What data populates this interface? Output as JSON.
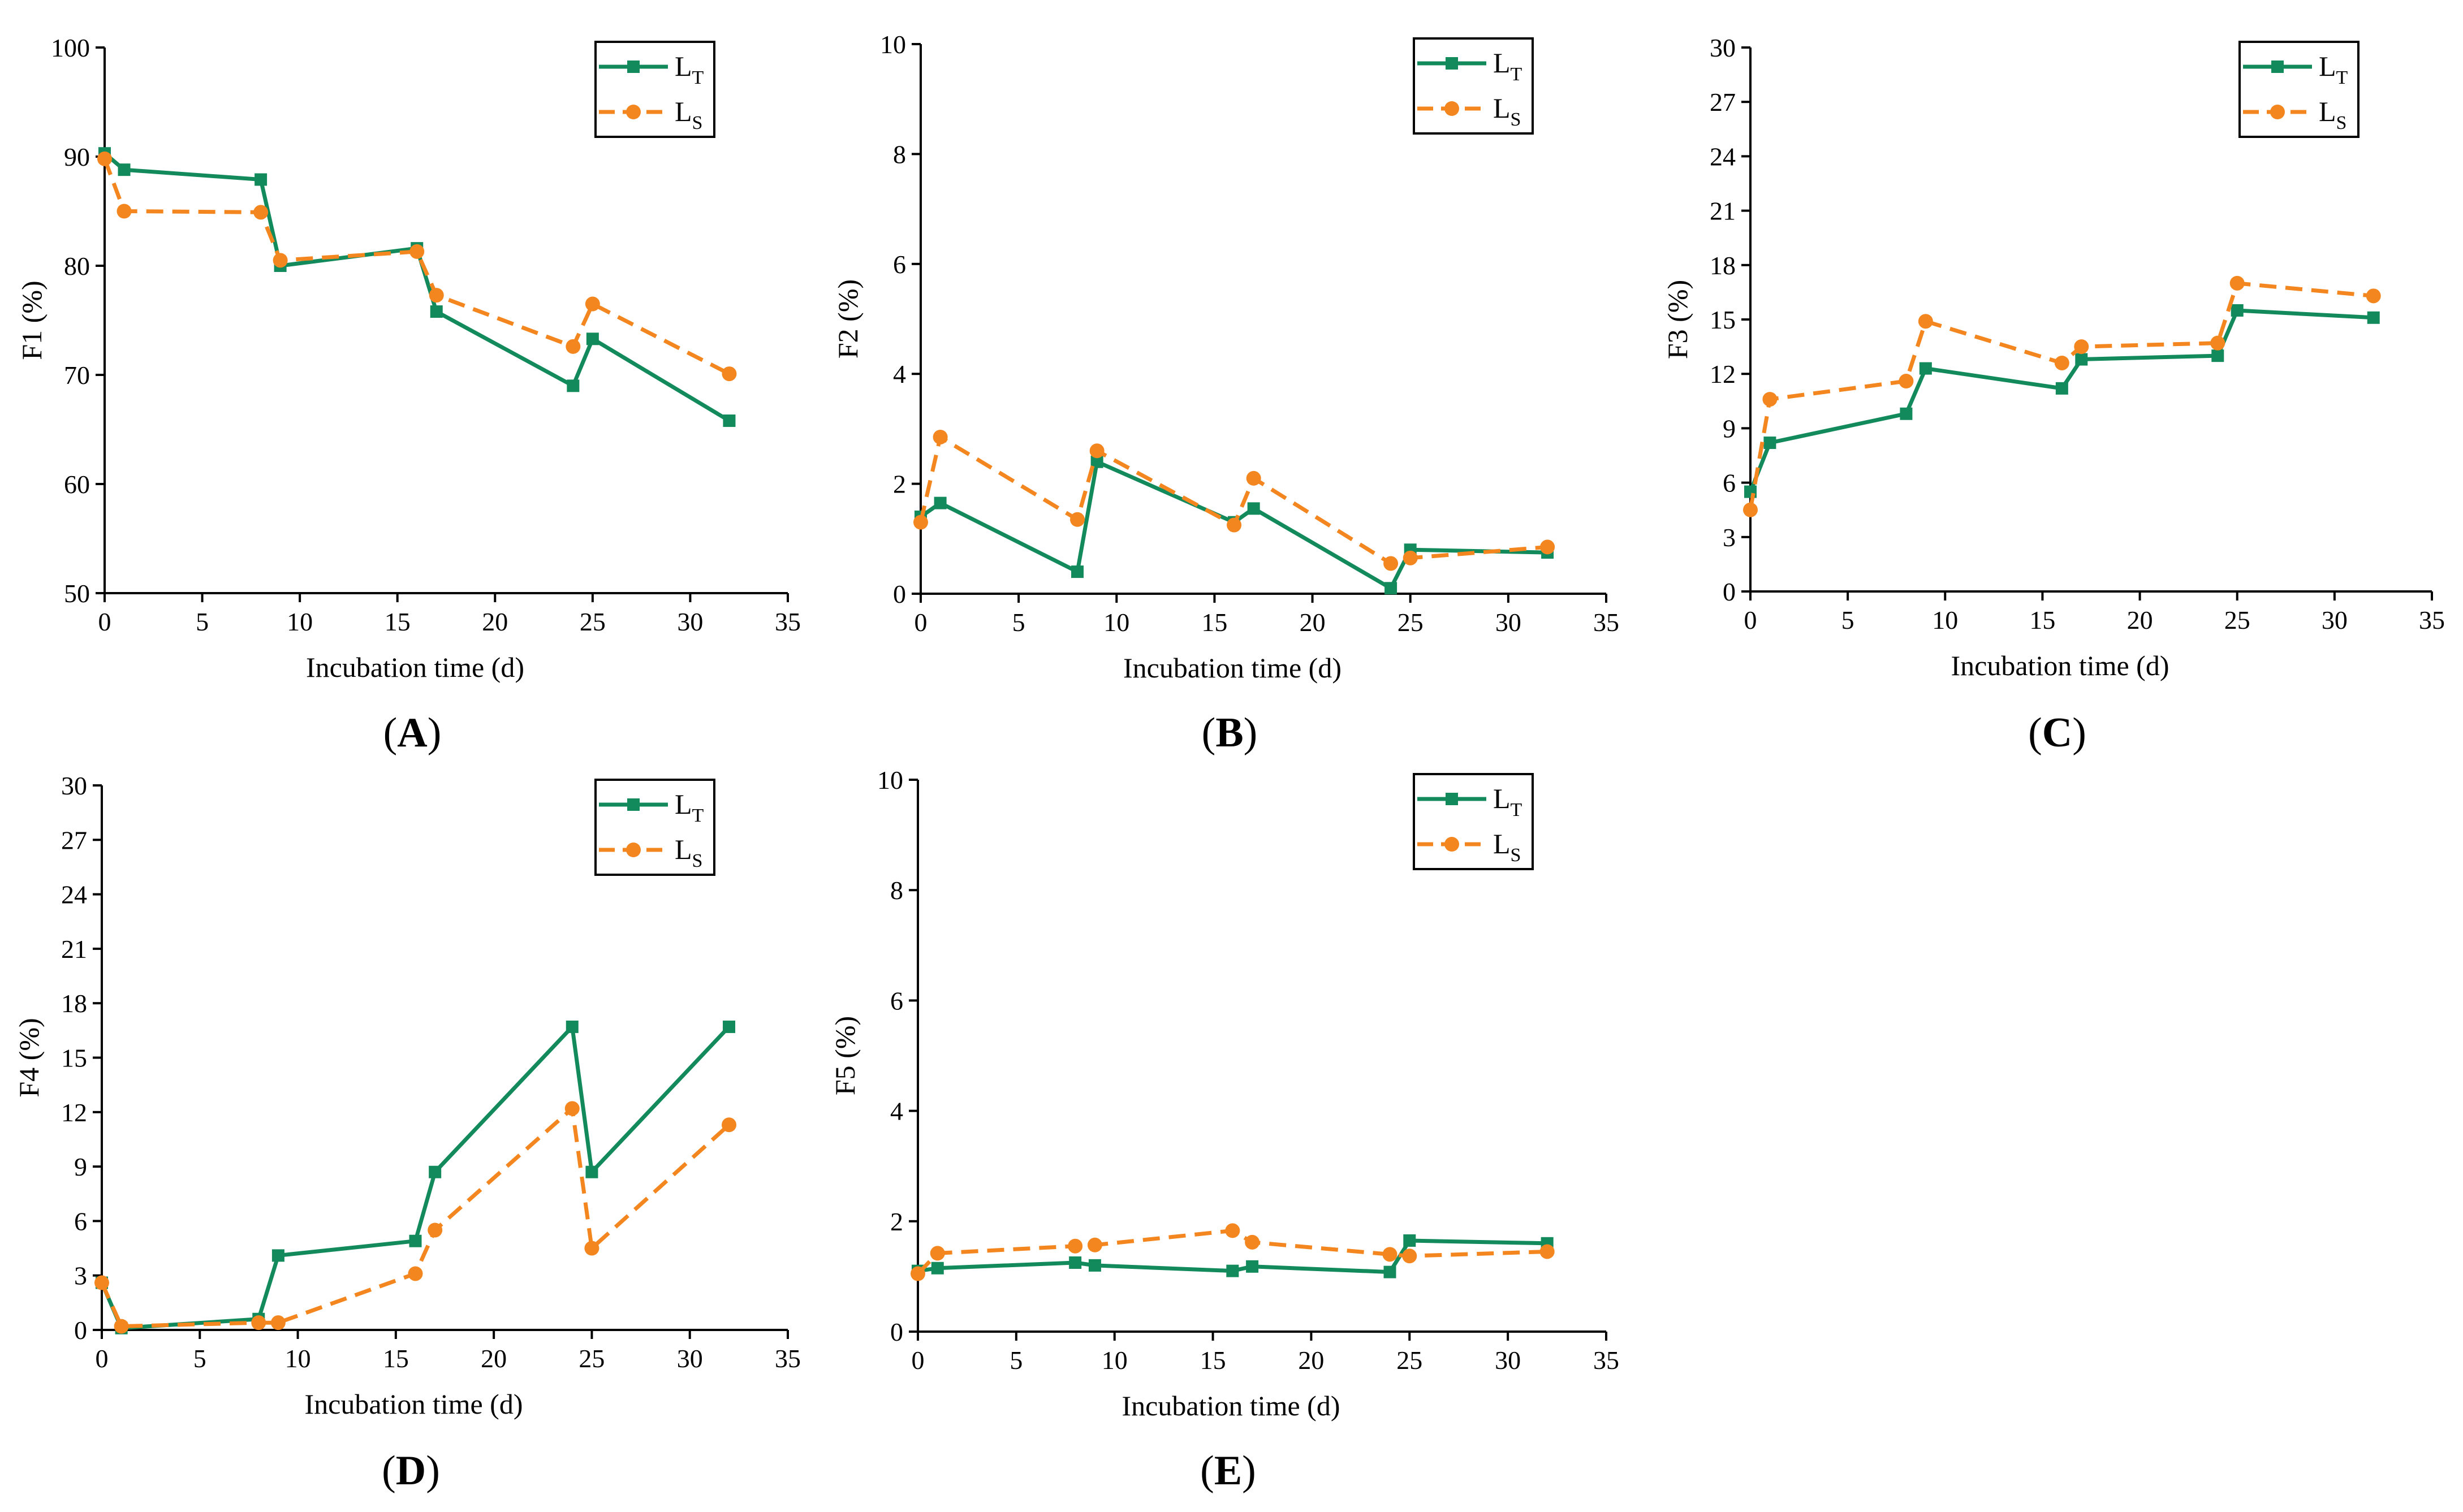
{
  "colors": {
    "LT": "#138a5c",
    "LS": "#f4861f",
    "axis": "#000000"
  },
  "chart_data": [
    {
      "id": "A",
      "type": "line",
      "panel_label": "A",
      "xlabel": "Incubation time (d)",
      "ylabel": "F1 (%)",
      "xlim": [
        0,
        35
      ],
      "ylim": [
        50,
        100
      ],
      "xticks": [
        0,
        5,
        10,
        15,
        20,
        25,
        30,
        35
      ],
      "yticks": [
        50,
        60,
        70,
        80,
        90,
        100
      ],
      "legend_position": "top-right",
      "series": [
        {
          "name": "LT",
          "label_main": "L",
          "label_sub": "T",
          "style": "solid",
          "marker": "square",
          "x": [
            0,
            1,
            8,
            9,
            16,
            17,
            24,
            25,
            32
          ],
          "y": [
            90.3,
            88.8,
            87.9,
            80.0,
            81.6,
            75.8,
            69.0,
            73.3,
            65.8
          ]
        },
        {
          "name": "LS",
          "label_main": "L",
          "label_sub": "S",
          "style": "dashed",
          "marker": "circle",
          "x": [
            0,
            1,
            8,
            9,
            16,
            17,
            24,
            25,
            32
          ],
          "y": [
            89.8,
            85.0,
            84.9,
            80.5,
            81.3,
            77.3,
            72.6,
            76.5,
            70.1
          ]
        }
      ]
    },
    {
      "id": "B",
      "type": "line",
      "panel_label": "B",
      "xlabel": "Incubation time (d)",
      "ylabel": "F2 (%)",
      "xlim": [
        0,
        35
      ],
      "ylim": [
        0,
        10
      ],
      "xticks": [
        0,
        5,
        10,
        15,
        20,
        25,
        30,
        35
      ],
      "yticks": [
        0,
        2,
        4,
        6,
        8,
        10
      ],
      "legend_position": "top-right",
      "series": [
        {
          "name": "LT",
          "label_main": "L",
          "label_sub": "T",
          "style": "solid",
          "marker": "square",
          "x": [
            0,
            1,
            8,
            9,
            16,
            17,
            24,
            25,
            32
          ],
          "y": [
            1.4,
            1.65,
            0.4,
            2.4,
            1.3,
            1.55,
            0.1,
            0.8,
            0.75
          ]
        },
        {
          "name": "LS",
          "label_main": "L",
          "label_sub": "S",
          "style": "dashed",
          "marker": "circle",
          "x": [
            0,
            1,
            8,
            9,
            16,
            17,
            24,
            25,
            32
          ],
          "y": [
            1.3,
            2.85,
            1.35,
            2.6,
            1.25,
            2.1,
            0.55,
            0.65,
            0.85
          ]
        }
      ]
    },
    {
      "id": "C",
      "type": "line",
      "panel_label": "C",
      "xlabel": "Incubation time (d)",
      "ylabel": "F3 (%)",
      "xlim": [
        0,
        35
      ],
      "ylim": [
        0,
        30
      ],
      "xticks": [
        0,
        5,
        10,
        15,
        20,
        25,
        30,
        35
      ],
      "yticks": [
        0,
        3,
        6,
        9,
        12,
        15,
        18,
        21,
        24,
        27,
        30
      ],
      "legend_position": "top-right",
      "series": [
        {
          "name": "LT",
          "label_main": "L",
          "label_sub": "T",
          "style": "solid",
          "marker": "square",
          "x": [
            0,
            1,
            8,
            9,
            16,
            17,
            24,
            25,
            32
          ],
          "y": [
            5.5,
            8.2,
            9.8,
            12.3,
            11.2,
            12.8,
            13.0,
            15.5,
            15.1
          ]
        },
        {
          "name": "LS",
          "label_main": "L",
          "label_sub": "S",
          "style": "dashed",
          "marker": "circle",
          "x": [
            0,
            1,
            8,
            9,
            16,
            17,
            24,
            25,
            32
          ],
          "y": [
            4.5,
            10.6,
            11.6,
            14.9,
            12.6,
            13.5,
            13.7,
            17.0,
            16.3
          ]
        }
      ]
    },
    {
      "id": "D",
      "type": "line",
      "panel_label": "D",
      "xlabel": "Incubation time (d)",
      "ylabel": "F4 (%)",
      "xlim": [
        0,
        35
      ],
      "ylim": [
        0,
        30
      ],
      "xticks": [
        0,
        5,
        10,
        15,
        20,
        25,
        30,
        35
      ],
      "yticks": [
        0,
        3,
        6,
        9,
        12,
        15,
        18,
        21,
        24,
        27,
        30
      ],
      "legend_position": "top-right",
      "series": [
        {
          "name": "LT",
          "label_main": "L",
          "label_sub": "T",
          "style": "solid",
          "marker": "square",
          "x": [
            0,
            1,
            8,
            9,
            16,
            17,
            24,
            25,
            32
          ],
          "y": [
            2.6,
            0.1,
            0.6,
            4.1,
            4.9,
            8.7,
            16.7,
            8.7,
            16.7
          ]
        },
        {
          "name": "LS",
          "label_main": "L",
          "label_sub": "S",
          "style": "dashed",
          "marker": "circle",
          "x": [
            0,
            1,
            8,
            9,
            16,
            17,
            24,
            25,
            32
          ],
          "y": [
            2.6,
            0.2,
            0.4,
            0.4,
            3.1,
            5.5,
            12.2,
            4.5,
            11.3
          ]
        }
      ]
    },
    {
      "id": "E",
      "type": "line",
      "panel_label": "E",
      "xlabel": "Incubation time (d)",
      "ylabel": "F5 (%)",
      "xlim": [
        0,
        35
      ],
      "ylim": [
        0,
        10
      ],
      "xticks": [
        0,
        5,
        10,
        15,
        20,
        25,
        30,
        35
      ],
      "yticks": [
        0,
        2,
        4,
        6,
        8,
        10
      ],
      "legend_position": "top-right",
      "series": [
        {
          "name": "LT",
          "label_main": "L",
          "label_sub": "T",
          "style": "solid",
          "marker": "square",
          "x": [
            0,
            1,
            8,
            9,
            16,
            17,
            24,
            25,
            32
          ],
          "y": [
            1.1,
            1.15,
            1.25,
            1.2,
            1.1,
            1.18,
            1.08,
            1.65,
            1.6
          ]
        },
        {
          "name": "LS",
          "label_main": "L",
          "label_sub": "S",
          "style": "dashed",
          "marker": "circle",
          "x": [
            0,
            1,
            8,
            9,
            16,
            17,
            24,
            25,
            32
          ],
          "y": [
            1.05,
            1.42,
            1.55,
            1.57,
            1.83,
            1.62,
            1.4,
            1.37,
            1.45
          ]
        }
      ]
    }
  ]
}
